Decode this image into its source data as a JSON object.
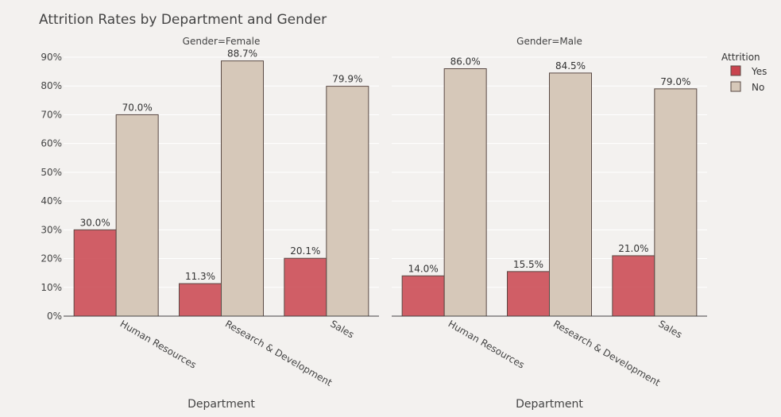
{
  "chart_data": {
    "type": "bar",
    "title": "Attrition Rates by Department and Gender",
    "legend": {
      "title": "Attrition",
      "placement": "right",
      "entries": [
        "Yes",
        "No"
      ]
    },
    "categories": [
      "Human Resources",
      "Research & Development",
      "Sales"
    ],
    "xlabel": "Department",
    "ylim": [
      0,
      100
    ],
    "yticks": [
      "0%",
      "10%",
      "20%",
      "30%",
      "40%",
      "50%",
      "60%",
      "70%",
      "80%",
      "90%"
    ],
    "grid": true,
    "colors": {
      "Yes": "#c9444e",
      "No": "#d6c8b9",
      "bar_outline": "#5a4a45"
    },
    "facets": [
      {
        "title": "Gender=Female",
        "series": [
          {
            "name": "Yes",
            "values": [
              30.0,
              11.3,
              20.1
            ],
            "labels": [
              "30.0%",
              "11.3%",
              "20.1%"
            ]
          },
          {
            "name": "No",
            "values": [
              70.0,
              88.7,
              79.9
            ],
            "labels": [
              "70.0%",
              "88.7%",
              "79.9%"
            ]
          }
        ]
      },
      {
        "title": "Gender=Male",
        "series": [
          {
            "name": "Yes",
            "values": [
              14.0,
              15.5,
              21.0
            ],
            "labels": [
              "14.0%",
              "15.5%",
              "21.0%"
            ]
          },
          {
            "name": "No",
            "values": [
              86.0,
              84.5,
              79.0
            ],
            "labels": [
              "86.0%",
              "84.5%",
              "79.0%"
            ]
          }
        ]
      }
    ]
  }
}
